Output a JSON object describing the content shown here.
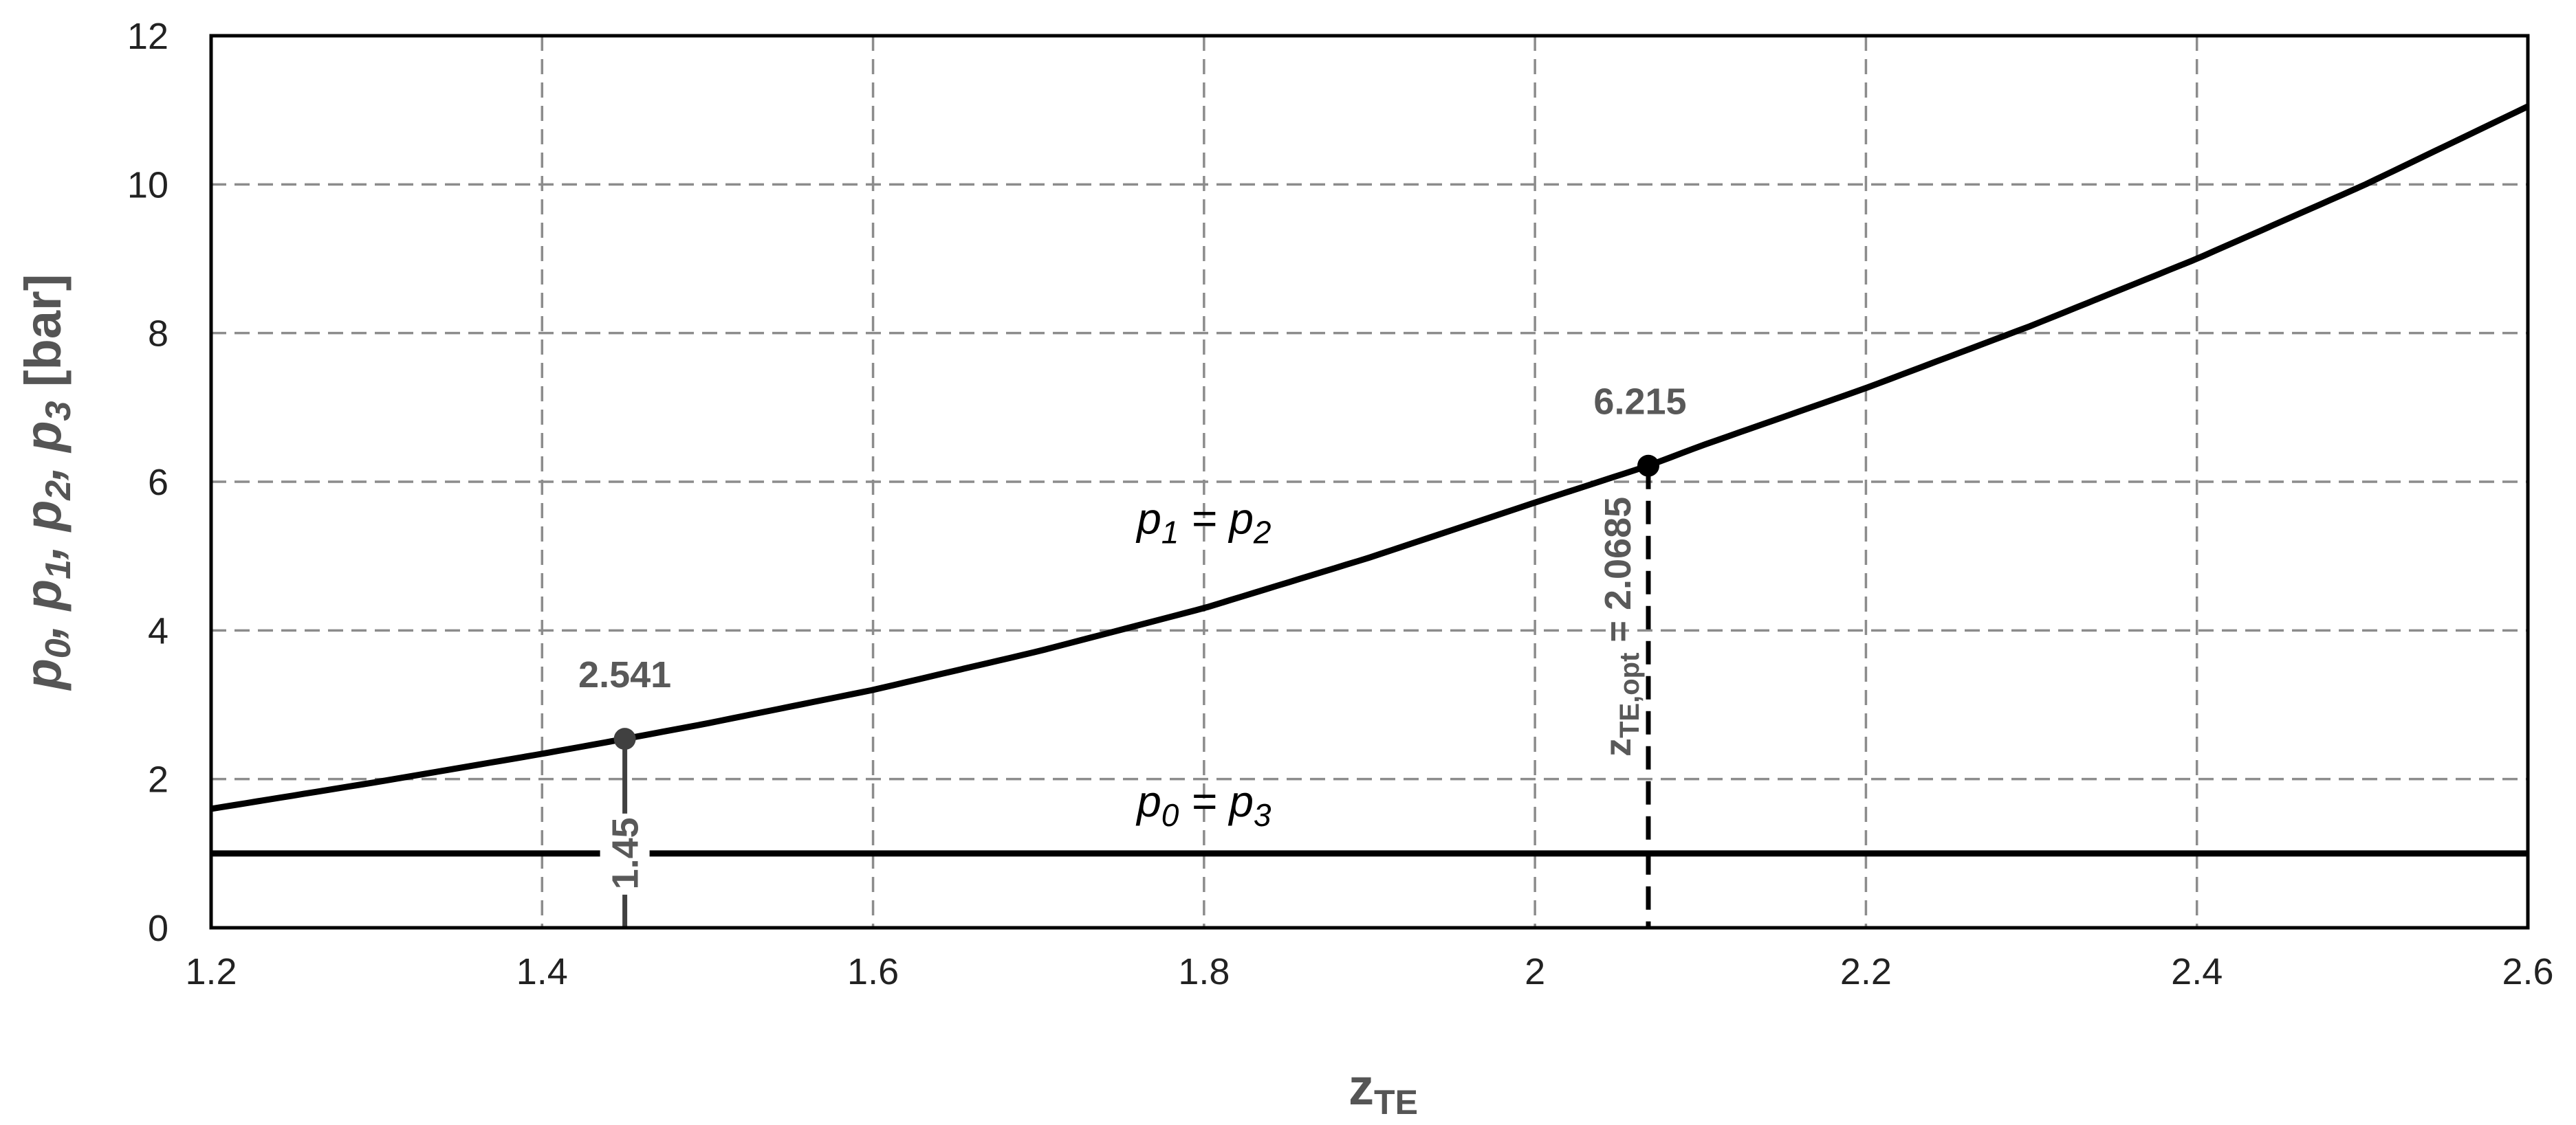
{
  "chart_data": {
    "type": "line",
    "xlabel": {
      "main": "z",
      "sub": "TE"
    },
    "ylabel": {
      "main": "p",
      "parts": [
        "0",
        "1",
        "2",
        "3"
      ],
      "unit": "[bar]"
    },
    "xlim": [
      1.2,
      2.6
    ],
    "ylim": [
      0,
      12
    ],
    "x_ticks": [
      1.2,
      1.4,
      1.6,
      1.8,
      2,
      2.2,
      2.4,
      2.6
    ],
    "x_tick_labels": [
      "1.2",
      "1.4",
      "1.6",
      "1.8",
      "2",
      "2.2",
      "2.4",
      "2.6"
    ],
    "y_ticks": [
      0,
      2,
      4,
      6,
      8,
      10,
      12
    ],
    "y_tick_labels": [
      "0",
      "2",
      "4",
      "6",
      "8",
      "10",
      "12"
    ],
    "grid": true,
    "series": [
      {
        "name": "p1 = p2",
        "label": {
          "lhs": "p",
          "lhs_sub": "1",
          "rhs": "p",
          "rhs_sub": "2",
          "at": [
            1.8,
            5.3
          ]
        },
        "x": [
          1.2,
          1.3,
          1.4,
          1.45,
          1.5,
          1.6,
          1.7,
          1.8,
          1.9,
          2.0,
          2.0685,
          2.1,
          2.2,
          2.3,
          2.4,
          2.5,
          2.6
        ],
        "y": [
          1.6,
          1.96,
          2.34,
          2.541,
          2.75,
          3.2,
          3.72,
          4.3,
          4.98,
          5.72,
          6.215,
          6.48,
          7.26,
          8.1,
          9.0,
          9.98,
          11.05
        ]
      },
      {
        "name": "p0 = p3",
        "label": {
          "lhs": "p",
          "lhs_sub": "0",
          "rhs": "p",
          "rhs_sub": "3",
          "at": [
            1.8,
            1.5
          ]
        },
        "x": [
          1.2,
          2.6
        ],
        "y": [
          1.0,
          1.0
        ]
      }
    ],
    "annotations": [
      {
        "x": 1.45,
        "y": 2.541,
        "point_label": "2.541",
        "drop_label": "1.45",
        "line": "solid-grey"
      },
      {
        "x": 2.0685,
        "y": 6.215,
        "point_label": "6.215",
        "drop_label_main": "z",
        "drop_label_sub": "TE,opt",
        "drop_label_value": " = 2.0685",
        "line": "dashed-black"
      }
    ]
  }
}
